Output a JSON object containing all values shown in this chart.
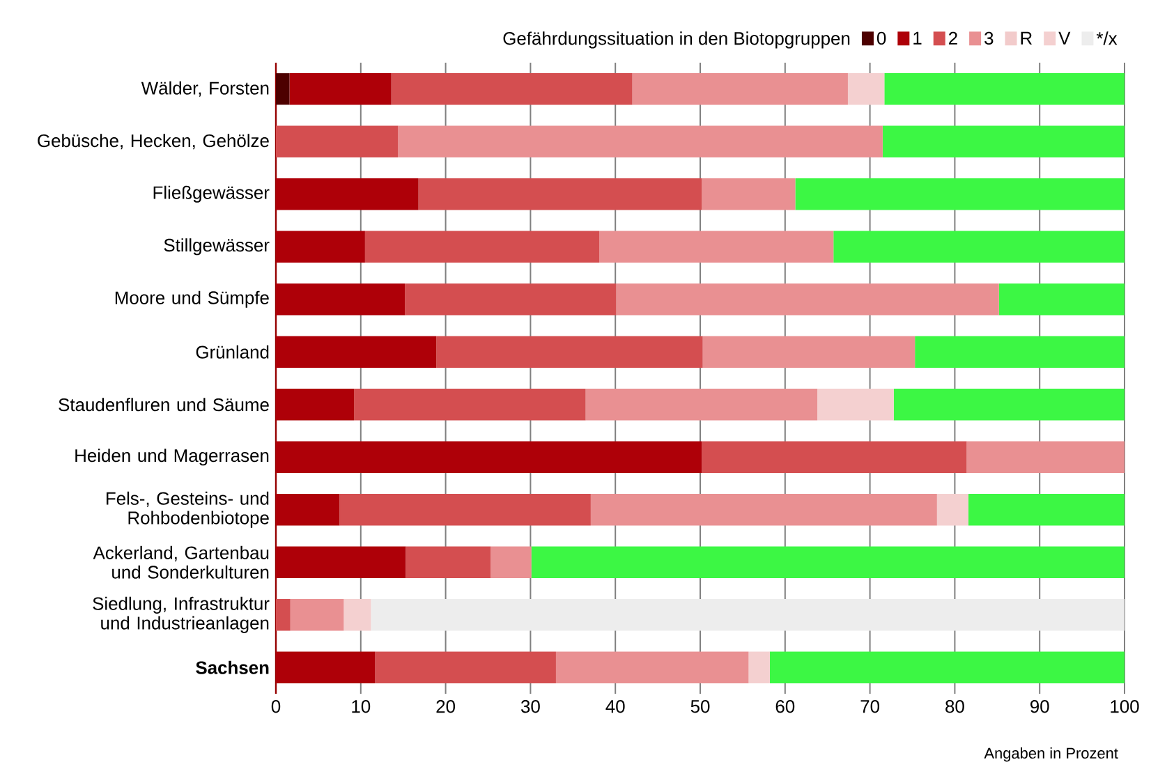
{
  "chart_data": {
    "type": "bar",
    "orientation": "horizontal",
    "stacked": true,
    "legend_title": "Gefährdungssituation in den Biotopgruppen",
    "xlabel": "Angaben in Prozent",
    "categories": [
      "Wälder, Forsten",
      "Gebüsche, Hecken, Gehölze",
      "Fließgewässer",
      "Stillgewässer",
      "Moore und Sümpfe",
      "Grünland",
      "Staudenfluren und Säume",
      "Heiden und Magerrasen",
      "Fels-, Gesteins- und Rohbodenbiotope",
      "Ackerland, Gartenbau und Sonderkulturen",
      "Siedlung, Infrastruktur und Industrieanlagen",
      "Sachsen"
    ],
    "series": [
      {
        "name": "0",
        "color": "#4d0000",
        "values": [
          1.6,
          null,
          null,
          null,
          null,
          null,
          null,
          null,
          null,
          null,
          null,
          null
        ]
      },
      {
        "name": "1",
        "color": "#ae0008",
        "values": [
          12.0,
          null,
          16.8,
          10.5,
          15.2,
          18.9,
          9.2,
          50.2,
          7.5,
          15.3,
          null,
          11.7
        ]
      },
      {
        "name": "2",
        "color": "#d44e50",
        "values": [
          28.4,
          14.4,
          33.4,
          27.6,
          24.9,
          31.4,
          27.3,
          31.2,
          29.6,
          10.0,
          1.7,
          21.3
        ]
      },
      {
        "name": "3",
        "color": "#e99092",
        "values": [
          25.4,
          57.1,
          11.0,
          27.6,
          45.1,
          25.0,
          27.3,
          18.6,
          40.8,
          4.8,
          6.3,
          22.7
        ]
      },
      {
        "name": "R",
        "color": "#f2cbcb",
        "values": [
          null,
          null,
          null,
          null,
          null,
          null,
          null,
          null,
          null,
          null,
          null,
          null
        ]
      },
      {
        "name": "V",
        "color": "#f4d0d0",
        "values": [
          4.3,
          null,
          null,
          null,
          null,
          null,
          9.0,
          null,
          3.7,
          null,
          3.2,
          2.5
        ]
      },
      {
        "name": "*/x",
        "color": "#ededed",
        "values": [
          null,
          null,
          null,
          null,
          null,
          null,
          null,
          null,
          null,
          null,
          88.8,
          null
        ]
      },
      {
        "color": "#3cf744",
        "values": [
          28.3,
          28.5,
          38.8,
          34.3,
          14.8,
          24.7,
          27.2,
          null,
          18.4,
          69.9,
          null,
          41.8
        ]
      }
    ],
    "xlim": [
      0,
      100
    ],
    "xticks": [
      0,
      10,
      20,
      30,
      40,
      50,
      60,
      70,
      80,
      90,
      100
    ],
    "grid": "x",
    "legend": "top"
  }
}
